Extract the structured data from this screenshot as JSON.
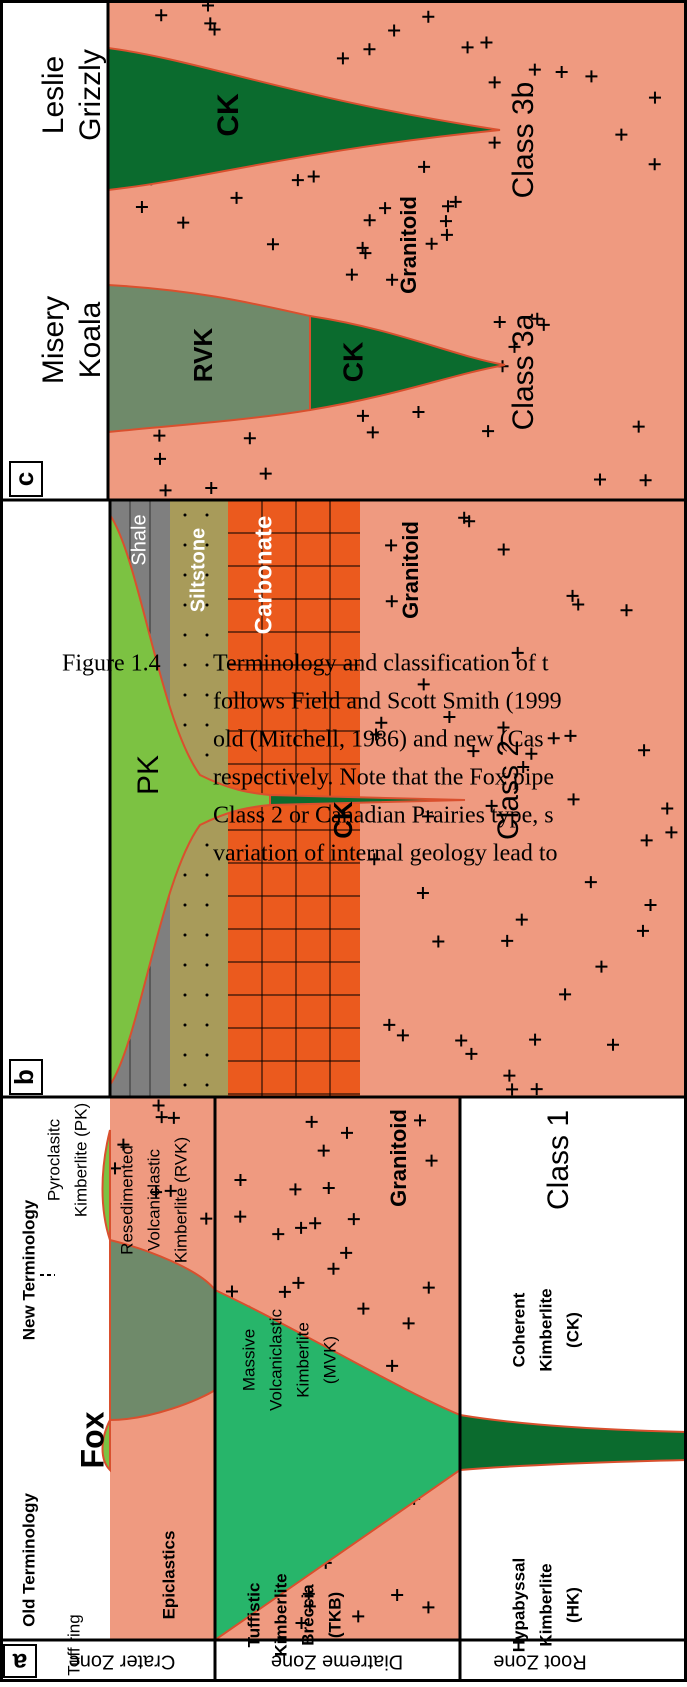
{
  "figure_caption": {
    "label": "Figure 1.4",
    "lines": [
      "Terminology and classification of t",
      "follows Field and Scott Smith (1999",
      "old (Mitchell, 1986) and new (Cas",
      "respectively. Note that the Fox pipe",
      "Class 2 or Canadian Prairies type, s",
      "variation of internal geology lead to"
    ]
  },
  "panel_a": {
    "label": "a",
    "zones": [
      "Crater Zone",
      "Diatreme Zone",
      "Root Zone"
    ],
    "header_old": "Old Terminology",
    "header_new": "New Terminology",
    "pipe_name": "Fox",
    "class": "Class 1",
    "tuff_ring": "Tuff ring",
    "epiclastics": "Epiclastics",
    "pk": [
      "Pyroclasitc",
      "Kimberlite (PK)"
    ],
    "rvk": [
      "Resedimented",
      "Volcaniclastic",
      "Kimberlite (RVK)"
    ],
    "mvk": [
      "Massive",
      "Volcaniclastic",
      "Kimberlite",
      "(MVK)"
    ],
    "tkb": [
      "Tuffistic",
      "Kimberlite",
      "Breccia",
      "(TKB)"
    ],
    "hk": [
      "Hypabyssal",
      "Kimberlite",
      "(HK)"
    ],
    "ck": [
      "Coherent",
      "Kimberlite",
      "(CK)"
    ],
    "granitoid": "Granitoid"
  },
  "panel_b": {
    "label": "b",
    "shale": "Shale",
    "siltstone": "Siltstone",
    "carbonate": "Carbonate",
    "granitoid": "Granitoid",
    "pk": "PK",
    "ck": "CK",
    "class": "Class 2"
  },
  "panel_c": {
    "label": "c",
    "pipe1": [
      "Leslie",
      "Grizzly"
    ],
    "pipe2": [
      "Misery",
      "Koala"
    ],
    "ck1": "CK",
    "ck2": "CK",
    "rvk": "RVK",
    "granitoid": "Granitoid",
    "class1": "Class 3b",
    "class2": "Class 3a"
  }
}
